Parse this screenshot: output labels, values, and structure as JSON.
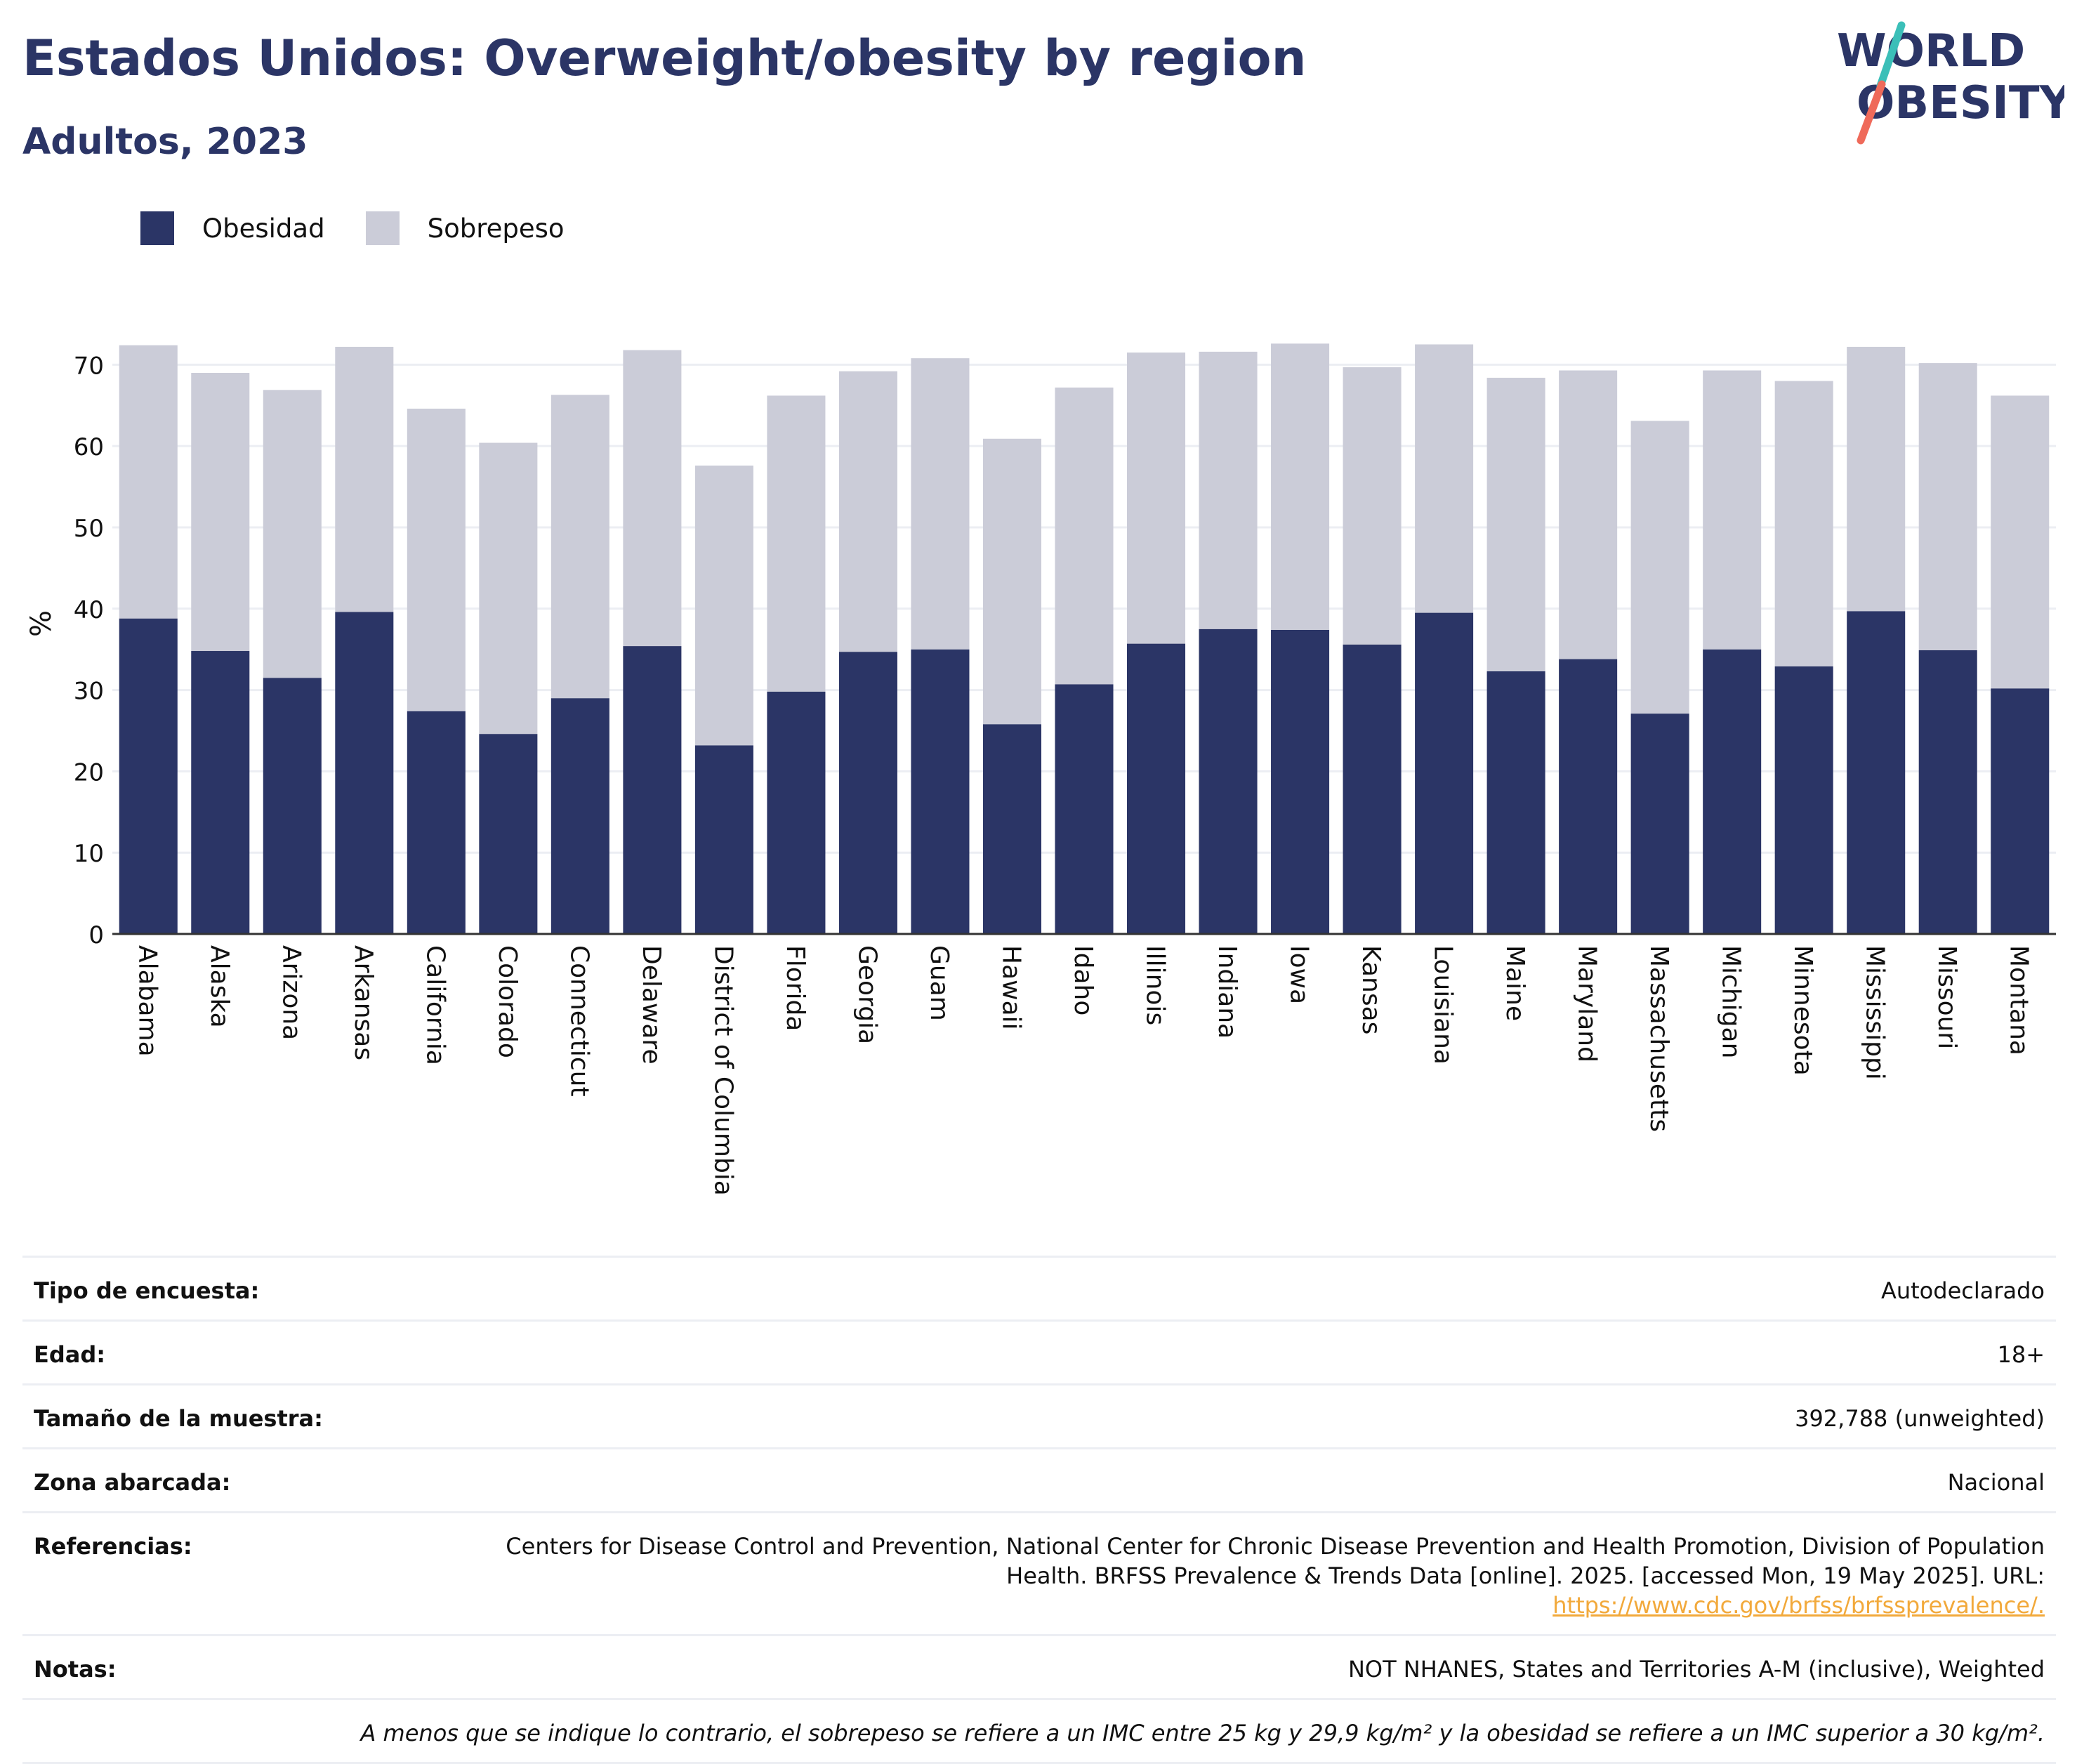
{
  "header": {
    "title": "Estados Unidos: Overweight/obesity by region",
    "subtitle": "Adultos, 2023"
  },
  "logo": {
    "line1": "WORLD",
    "line2": "OBESITY",
    "name": "world-obesity-logo"
  },
  "legend": [
    {
      "label": "Obesidad",
      "color": "#2b3566"
    },
    {
      "label": "Sobrepeso",
      "color": "#cbccd8"
    }
  ],
  "chart_data": {
    "type": "bar",
    "stacked": true,
    "ylabel": "%",
    "xlabel": "",
    "ylim": [
      0,
      75
    ],
    "yticks": [
      0,
      10,
      20,
      30,
      40,
      50,
      60,
      70
    ],
    "grid": true,
    "legend_position": "top-left",
    "categories": [
      "Alabama",
      "Alaska",
      "Arizona",
      "Arkansas",
      "California",
      "Colorado",
      "Connecticut",
      "Delaware",
      "District of Columbia",
      "Florida",
      "Georgia",
      "Guam",
      "Hawaii",
      "Idaho",
      "Illinois",
      "Indiana",
      "Iowa",
      "Kansas",
      "Louisiana",
      "Maine",
      "Maryland",
      "Massachusetts",
      "Michigan",
      "Minnesota",
      "Mississippi",
      "Missouri",
      "Montana"
    ],
    "series": [
      {
        "name": "Obesidad",
        "color": "#2b3566",
        "values": [
          38.8,
          34.8,
          31.5,
          39.6,
          27.4,
          24.6,
          29.0,
          35.4,
          23.2,
          29.8,
          34.7,
          35.0,
          25.8,
          30.7,
          35.7,
          37.5,
          37.4,
          35.6,
          39.5,
          32.3,
          33.8,
          27.1,
          35.0,
          32.9,
          39.7,
          34.9,
          30.2
        ]
      },
      {
        "name": "Sobrepeso",
        "color": "#cbccd8",
        "values": [
          33.6,
          34.2,
          35.4,
          32.6,
          37.2,
          35.8,
          37.3,
          36.4,
          34.4,
          36.4,
          34.5,
          35.8,
          35.1,
          36.5,
          35.8,
          34.1,
          35.2,
          34.1,
          33.0,
          36.1,
          35.5,
          36.0,
          34.3,
          35.1,
          32.5,
          35.3,
          36.0
        ]
      }
    ]
  },
  "info": [
    {
      "label": "Tipo de encuesta:",
      "value": "Autodeclarado"
    },
    {
      "label": "Edad:",
      "value": "18+"
    },
    {
      "label": "Tamaño de la muestra:",
      "value": "392,788 (unweighted)"
    },
    {
      "label": "Zona abarcada:",
      "value": "Nacional"
    },
    {
      "label": "Referencias:",
      "value": "Centers for Disease Control and Prevention, National Center for Chronic Disease Prevention and Health Promotion, Division of Population Health. BRFSS Prevalence & Trends Data [online]. 2025. [accessed Mon, 19 May 2025]. URL:",
      "link": "https://www.cdc.gov/brfss/brfssprevalence/."
    },
    {
      "label": "Notas:",
      "value": "NOT NHANES, States and Territories A-M (inclusive), Weighted"
    }
  ],
  "footnote": "A menos que se indique lo contrario, el sobrepeso se refiere a un IMC entre 25 kg y 29,9 kg/m² y la obesidad se refiere a un IMC superior a 30 kg/m²."
}
